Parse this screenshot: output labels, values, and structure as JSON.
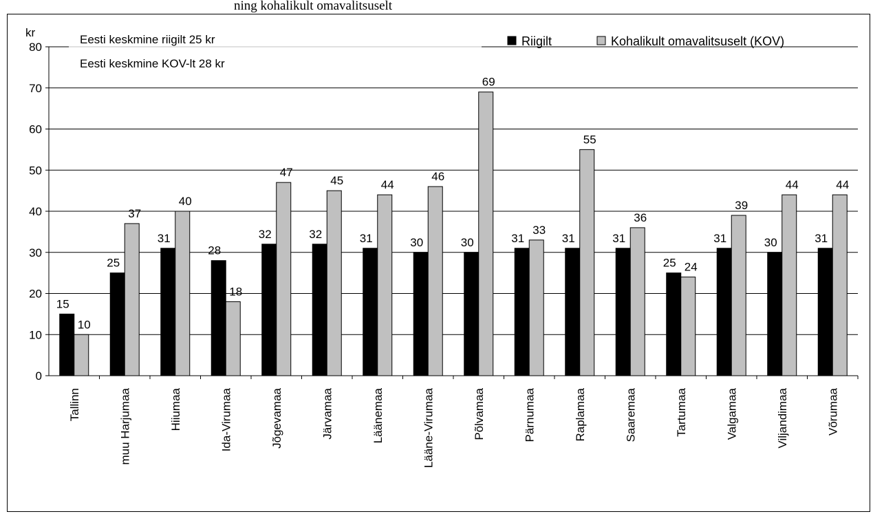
{
  "top_cut_text": "ning kohalikult omavalitsuselt",
  "chart_data": {
    "type": "bar",
    "y_unit": "kr",
    "ylim": [
      0,
      80
    ],
    "y_ticks": [
      0,
      10,
      20,
      30,
      40,
      50,
      60,
      70,
      80
    ],
    "grid": true,
    "legend_position": "top-right",
    "categories": [
      "Tallinn",
      "muu Harjumaa",
      "Hiiumaa",
      "Ida-Virumaa",
      "Jõgevamaa",
      "Järvamaa",
      "Läänemaa",
      "Lääne-Virumaa",
      "Põlvamaa",
      "Pärnumaa",
      "Raplamaa",
      "Saaremaa",
      "Tartumaa",
      "Valgamaa",
      "Viljandimaa",
      "Võrumaa"
    ],
    "series": [
      {
        "name": "Riigilt",
        "color": "#000000",
        "values": [
          15,
          25,
          31,
          28,
          32,
          32,
          31,
          30,
          30,
          31,
          31,
          31,
          25,
          31,
          30,
          31
        ]
      },
      {
        "name": "Kohalikult omavalitsuselt (KOV)",
        "color": "#c0c0c0",
        "values": [
          10,
          37,
          40,
          18,
          47,
          45,
          44,
          46,
          69,
          33,
          55,
          36,
          24,
          39,
          44,
          44
        ]
      }
    ],
    "annotations": [
      "Eesti keskmine riigilt 25 kr",
      "Eesti keskmine KOV-lt 28 kr"
    ]
  }
}
